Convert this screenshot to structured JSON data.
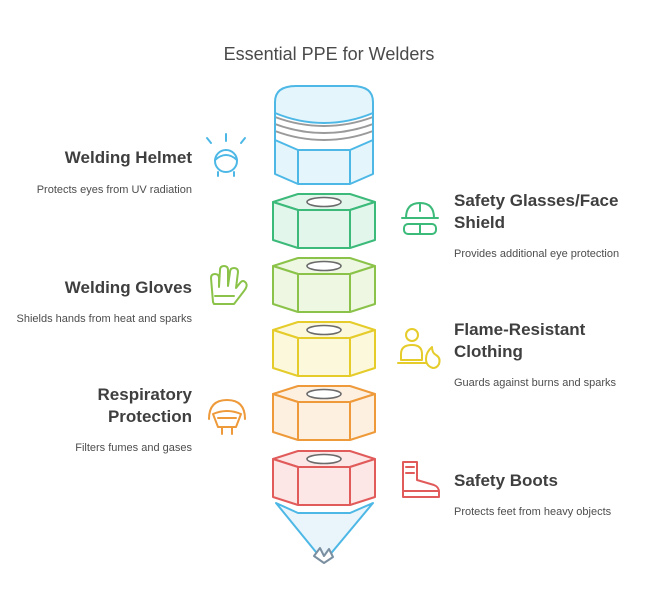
{
  "title": "Essential PPE for Welders",
  "items": [
    {
      "title": "Welding Helmet",
      "desc": "Protects eyes from UV radiation",
      "icon": "welding-helmet-icon",
      "color": "#4db8e6",
      "fill": "#e4f5fc"
    },
    {
      "title": "Safety Glasses/Face Shield",
      "desc": "Provides additional eye protection",
      "icon": "hard-hat-goggles-icon",
      "color": "#3cba7a",
      "fill": "#e3f6ec"
    },
    {
      "title": "Welding Gloves",
      "desc": "Shields hands from heat and sparks",
      "icon": "glove-icon",
      "color": "#8bc34a",
      "fill": "#eef7e1"
    },
    {
      "title": "Flame-Resistant Clothing",
      "desc": "Guards against burns and sparks",
      "icon": "flame-person-icon",
      "color": "#e5cc2a",
      "fill": "#fcf8dc"
    },
    {
      "title": "Respiratory Protection",
      "desc": "Filters fumes and gases",
      "icon": "respirator-icon",
      "color": "#ee9a3a",
      "fill": "#fdf0e1"
    },
    {
      "title": "Safety Boots",
      "desc": "Protects feet from heavy objects",
      "icon": "boot-icon",
      "color": "#e15b5b",
      "fill": "#fce6e6"
    }
  ],
  "tip_color": "#7a8fa0"
}
